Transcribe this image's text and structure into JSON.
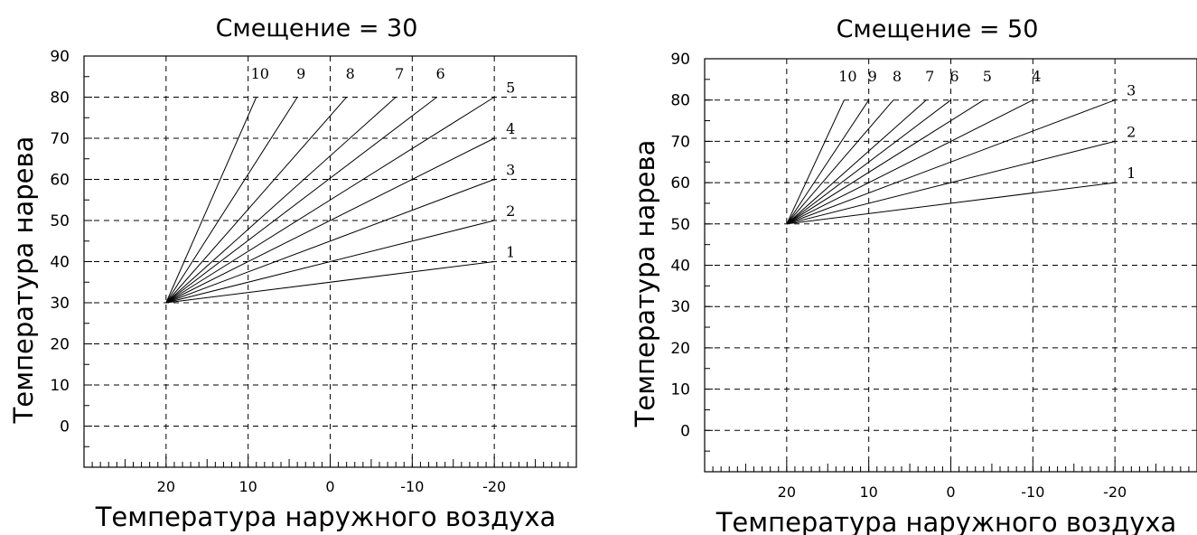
{
  "chart_data": [
    {
      "type": "line",
      "title": "Смещение = 30",
      "xlabel": "Температура наружного воздуха",
      "ylabel": "Температура нарева",
      "x_reversed": true,
      "xlim": [
        30,
        -30
      ],
      "ylim": [
        -10,
        90
      ],
      "xticks": [
        20,
        10,
        0,
        -10,
        -20
      ],
      "xtick_labels": [
        "20",
        "10",
        "0",
        "-10",
        "-20"
      ],
      "yticks": [
        0,
        10,
        20,
        30,
        40,
        50,
        60,
        70,
        80,
        90
      ],
      "ytick_labels": [
        "0",
        "10",
        "20",
        "30",
        "40",
        "50",
        "60",
        "70",
        "80",
        "90"
      ],
      "grid": true,
      "offset": 30,
      "series": [
        {
          "name": "1",
          "x": [
            20,
            -20
          ],
          "y": [
            30,
            40
          ]
        },
        {
          "name": "2",
          "x": [
            20,
            -20
          ],
          "y": [
            30,
            50
          ]
        },
        {
          "name": "3",
          "x": [
            20,
            -20
          ],
          "y": [
            30,
            60
          ]
        },
        {
          "name": "4",
          "x": [
            20,
            -20
          ],
          "y": [
            30,
            70
          ]
        },
        {
          "name": "5",
          "x": [
            20,
            -20
          ],
          "y": [
            30,
            80
          ]
        },
        {
          "name": "6",
          "x": [
            20,
            -13
          ],
          "y": [
            30,
            80
          ]
        },
        {
          "name": "7",
          "x": [
            20,
            -8
          ],
          "y": [
            30,
            80
          ]
        },
        {
          "name": "8",
          "x": [
            20,
            -2
          ],
          "y": [
            30,
            80
          ]
        },
        {
          "name": "9",
          "x": [
            20,
            4
          ],
          "y": [
            30,
            80
          ]
        },
        {
          "name": "10",
          "x": [
            20,
            9
          ],
          "y": [
            30,
            80
          ]
        }
      ]
    },
    {
      "type": "line",
      "title": "Смещение = 50",
      "xlabel": "Температура наружного воздуха",
      "ylabel": "Температура нарева",
      "x_reversed": true,
      "xlim": [
        30,
        -30
      ],
      "ylim": [
        -10,
        90
      ],
      "xticks": [
        20,
        10,
        0,
        -10,
        -20
      ],
      "xtick_labels": [
        "20",
        "10",
        "0",
        "-10",
        "-20"
      ],
      "yticks": [
        0,
        10,
        20,
        30,
        40,
        50,
        60,
        70,
        80,
        90
      ],
      "ytick_labels": [
        "0",
        "10",
        "20",
        "30",
        "40",
        "50",
        "60",
        "70",
        "80",
        "90"
      ],
      "grid": true,
      "offset": 50,
      "series": [
        {
          "name": "1",
          "x": [
            20,
            -20
          ],
          "y": [
            50,
            60
          ]
        },
        {
          "name": "2",
          "x": [
            20,
            -20
          ],
          "y": [
            50,
            70
          ]
        },
        {
          "name": "3",
          "x": [
            20,
            -20
          ],
          "y": [
            50,
            80
          ]
        },
        {
          "name": "4",
          "x": [
            20,
            -10
          ],
          "y": [
            50,
            80
          ]
        },
        {
          "name": "5",
          "x": [
            20,
            -4
          ],
          "y": [
            50,
            80
          ]
        },
        {
          "name": "6",
          "x": [
            20,
            0
          ],
          "y": [
            50,
            80
          ]
        },
        {
          "name": "7",
          "x": [
            20,
            3
          ],
          "y": [
            50,
            80
          ]
        },
        {
          "name": "8",
          "x": [
            20,
            7
          ],
          "y": [
            50,
            80
          ]
        },
        {
          "name": "9",
          "x": [
            20,
            10
          ],
          "y": [
            50,
            80
          ]
        },
        {
          "name": "10",
          "x": [
            20,
            13
          ],
          "y": [
            50,
            80
          ]
        }
      ]
    }
  ]
}
